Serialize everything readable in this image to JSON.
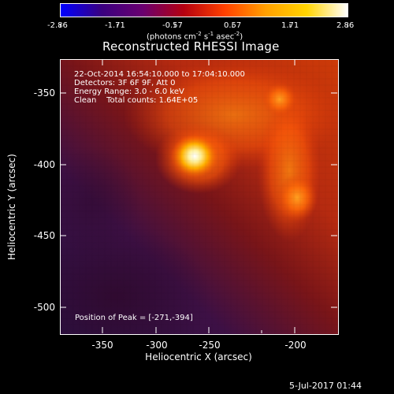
{
  "colorbar": {
    "tick_labels": [
      "-2.86",
      "-1.71",
      "-0.57",
      "0.57",
      "1.71",
      "2.86"
    ],
    "units_parts": {
      "prefix": "(photons cm",
      "sup1": "-2",
      "mid1": " s",
      "sup2": "-1",
      "mid2": " asec",
      "sup3": "-2",
      "suffix": ")"
    },
    "colors": [
      "#0000ff",
      "#3a0080",
      "#6a0070",
      "#b40010",
      "#ff4000",
      "#ff9f00",
      "#ffd400",
      "#ffffff"
    ]
  },
  "title": "Reconstructed RHESSI Image",
  "info_lines": [
    "22-Oct-2014 16:54:10.000 to 17:04:10.000",
    "Detectors: 3F 6F 9F, Att 0",
    "Energy Range: 3.0 - 6.0 keV",
    "Clean    Total counts: 1.64E+05"
  ],
  "peak_text": "Position of Peak = [-271,-394]",
  "axes": {
    "x_title": "Heliocentric X (arcsec)",
    "y_title": "Heliocentric Y (arcsec)",
    "x_ticks": [
      "-350",
      "-300",
      "-250",
      "-200"
    ],
    "y_ticks": [
      "-350",
      "-400",
      "-450",
      "-500"
    ],
    "xlim": [
      -365,
      -170
    ],
    "ylim": [
      -520,
      -320
    ]
  },
  "timestamp": "5-Jul-2017 01:44"
}
